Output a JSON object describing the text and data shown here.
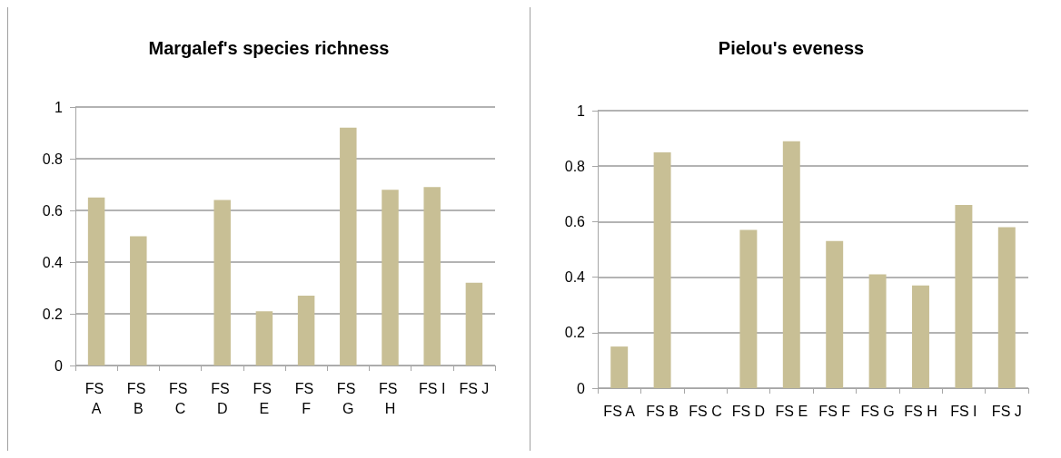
{
  "chart_data": [
    {
      "type": "bar",
      "title": "Margalef's species richness",
      "categories": [
        "FS A",
        "FS B",
        "FS C",
        "FS D",
        "FS E",
        "FS F",
        "FS G",
        "FS H",
        "FS I",
        "FS J"
      ],
      "values": [
        0.65,
        0.5,
        0,
        0.64,
        0.21,
        0.27,
        0.92,
        0.68,
        0.69,
        0.32
      ],
      "color": "#c8bf95",
      "ylim": [
        0,
        1
      ],
      "yticks": [
        0,
        0.2,
        0.4,
        0.6,
        0.8,
        1
      ],
      "grid": "y"
    },
    {
      "type": "bar",
      "title": "Pielou's eveness",
      "categories": [
        "FS A",
        "FS B",
        "FS C",
        "FS D",
        "FS E",
        "FS F",
        "FS G",
        "FS H",
        "FS I",
        "FS J"
      ],
      "values": [
        0.15,
        0.85,
        0,
        0.57,
        0.89,
        0.53,
        0.41,
        0.37,
        0.66,
        0.58
      ],
      "color": "#c8bf95",
      "ylim": [
        0,
        1
      ],
      "yticks": [
        0,
        0.2,
        0.4,
        0.6,
        0.8,
        1
      ],
      "grid": "y"
    }
  ]
}
